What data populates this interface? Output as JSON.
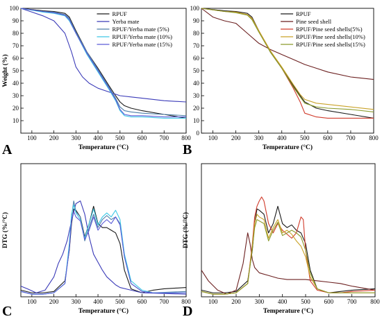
{
  "colors": {
    "RPUF": "#1a1a1a",
    "Yerba mate": "#3a3ab8",
    "RPUF/Yerba mate (5%)": "#4d7ea8",
    "RPUF/Yerba mate (10%)": "#3ec8e6",
    "RPUF/Yerba mate (15%)": "#5a5ad6",
    "Pine seed shell": "#6b1f1f",
    "RPUF/Pine seed shells(5%)": "#d03a2a",
    "RPUF/Pine seed shells(10%)": "#c9a227",
    "RPUF/Pine seed shells(15%)": "#8a9a2a"
  },
  "chart_data": [
    {
      "panel": "A",
      "type": "line",
      "xlabel": "Temperature (°C)",
      "ylabel": "Weight (%)",
      "xlim": [
        50,
        800
      ],
      "ylim": [
        0,
        100
      ],
      "xticks": [
        100,
        200,
        300,
        400,
        500,
        600,
        700,
        800
      ],
      "yticks": [
        10,
        20,
        30,
        40,
        50,
        60,
        70,
        80,
        90,
        100
      ],
      "legend_position": "top-right",
      "series": [
        {
          "name": "RPUF",
          "x": [
            50,
            150,
            200,
            250,
            270,
            300,
            350,
            400,
            450,
            480,
            500,
            520,
            550,
            600,
            700,
            800
          ],
          "y": [
            100,
            98,
            97.5,
            96,
            93,
            82,
            65,
            52,
            38,
            30,
            25,
            22,
            20,
            18,
            15,
            12
          ]
        },
        {
          "name": "Yerba mate",
          "x": [
            50,
            100,
            150,
            200,
            250,
            280,
            300,
            330,
            360,
            400,
            450,
            500,
            550,
            600,
            700,
            800
          ],
          "y": [
            100,
            97,
            94,
            90,
            80,
            65,
            53,
            45,
            40,
            36,
            33,
            30,
            29,
            28,
            26,
            25
          ]
        },
        {
          "name": "RPUF/Yerba mate (5%)",
          "x": [
            50,
            150,
            200,
            250,
            270,
            300,
            350,
            400,
            450,
            480,
            500,
            520,
            550,
            600,
            700,
            800
          ],
          "y": [
            100,
            97.5,
            97,
            95,
            92,
            81,
            65,
            51,
            37,
            28,
            21,
            18,
            17,
            16,
            15,
            14
          ]
        },
        {
          "name": "RPUF/Yerba mate (10%)",
          "x": [
            50,
            150,
            200,
            250,
            270,
            300,
            350,
            400,
            450,
            480,
            500,
            520,
            550,
            600,
            700,
            800
          ],
          "y": [
            100,
            97,
            96,
            94,
            90,
            80,
            63,
            49,
            35,
            26,
            18,
            14,
            13,
            13,
            12,
            12
          ]
        },
        {
          "name": "RPUF/Yerba mate (15%)",
          "x": [
            50,
            150,
            200,
            250,
            270,
            300,
            350,
            400,
            450,
            480,
            500,
            520,
            550,
            600,
            700,
            800
          ],
          "y": [
            100,
            97.5,
            96.5,
            94.5,
            91,
            80,
            64,
            50,
            36,
            27,
            19,
            15,
            14,
            14,
            13,
            13
          ]
        }
      ]
    },
    {
      "panel": "B",
      "type": "line",
      "xlabel": "Temperature (°C)",
      "ylabel": "",
      "xlim": [
        50,
        800
      ],
      "ylim": [
        0,
        100
      ],
      "xticks": [
        100,
        200,
        300,
        400,
        500,
        600,
        700,
        800
      ],
      "yticks": [
        0,
        10,
        20,
        30,
        40,
        50,
        60,
        70,
        80,
        90,
        100
      ],
      "legend_position": "top-right",
      "series": [
        {
          "name": "RPUF",
          "x": [
            50,
            150,
            200,
            250,
            270,
            300,
            350,
            400,
            450,
            480,
            500,
            550,
            600,
            700,
            800
          ],
          "y": [
            100,
            98,
            97.5,
            96,
            93,
            82,
            65,
            52,
            38,
            30,
            25,
            20,
            18,
            15,
            12
          ]
        },
        {
          "name": "Pine seed shell",
          "x": [
            50,
            100,
            150,
            200,
            250,
            300,
            350,
            400,
            450,
            500,
            550,
            600,
            700,
            800
          ],
          "y": [
            100,
            93,
            90,
            88,
            80,
            72,
            67,
            63,
            59,
            55,
            52,
            49,
            45,
            43
          ]
        },
        {
          "name": "RPUF/Pine seed shells(5%)",
          "x": [
            50,
            150,
            200,
            250,
            270,
            300,
            350,
            400,
            450,
            480,
            500,
            550,
            600,
            700,
            800
          ],
          "y": [
            100,
            97.5,
            97,
            95,
            92,
            82,
            66,
            52,
            36,
            25,
            16,
            13,
            12,
            12,
            12
          ]
        },
        {
          "name": "RPUF/Pine seed shells(10%)",
          "x": [
            50,
            150,
            200,
            250,
            270,
            300,
            350,
            400,
            450,
            480,
            500,
            550,
            600,
            700,
            800
          ],
          "y": [
            100,
            97.5,
            97,
            95,
            92,
            82,
            66,
            53,
            39,
            31,
            27,
            24,
            23,
            21,
            19
          ]
        },
        {
          "name": "RPUF/Pine seed shells(15%)",
          "x": [
            50,
            150,
            200,
            250,
            270,
            300,
            350,
            400,
            450,
            480,
            500,
            550,
            600,
            700,
            800
          ],
          "y": [
            100,
            97.5,
            96.5,
            94.5,
            91,
            81,
            65,
            52,
            37,
            29,
            24,
            21,
            20,
            19,
            17
          ]
        }
      ]
    },
    {
      "panel": "C",
      "type": "line",
      "xlabel": "Temperature (°C)",
      "ylabel": "DTG (%/°C)",
      "xlim": [
        50,
        800
      ],
      "ylim": [
        0,
        1
      ],
      "xticks": [
        100,
        200,
        300,
        400,
        500,
        600,
        700,
        800
      ],
      "yticks": [],
      "series": [
        {
          "name": "RPUF",
          "x": [
            50,
            100,
            150,
            200,
            250,
            270,
            280,
            290,
            300,
            320,
            340,
            360,
            380,
            400,
            420,
            440,
            460,
            480,
            500,
            520,
            550,
            600,
            650,
            700,
            800
          ],
          "y": [
            0.05,
            0.03,
            0.03,
            0.04,
            0.12,
            0.35,
            0.55,
            0.66,
            0.65,
            0.6,
            0.45,
            0.55,
            0.68,
            0.55,
            0.52,
            0.52,
            0.5,
            0.48,
            0.4,
            0.2,
            0.06,
            0.03,
            0.05,
            0.06,
            0.07
          ]
        },
        {
          "name": "Yerba mate",
          "x": [
            50,
            80,
            120,
            160,
            200,
            220,
            240,
            260,
            280,
            300,
            320,
            340,
            360,
            380,
            400,
            420,
            440,
            460,
            480,
            500,
            550,
            600,
            800
          ],
          "y": [
            0.08,
            0.06,
            0.03,
            0.05,
            0.15,
            0.25,
            0.32,
            0.42,
            0.57,
            0.7,
            0.72,
            0.62,
            0.45,
            0.32,
            0.26,
            0.2,
            0.15,
            0.12,
            0.09,
            0.07,
            0.05,
            0.03,
            0.02
          ]
        },
        {
          "name": "RPUF/Yerba mate (5%)",
          "x": [
            50,
            100,
            150,
            200,
            250,
            270,
            280,
            290,
            300,
            320,
            340,
            360,
            380,
            400,
            420,
            440,
            460,
            480,
            500,
            520,
            550,
            600,
            650,
            800
          ],
          "y": [
            0.04,
            0.02,
            0.02,
            0.03,
            0.1,
            0.38,
            0.6,
            0.72,
            0.64,
            0.6,
            0.42,
            0.52,
            0.62,
            0.52,
            0.58,
            0.61,
            0.58,
            0.6,
            0.55,
            0.3,
            0.1,
            0.04,
            0.03,
            0.04
          ]
        },
        {
          "name": "RPUF/Yerba mate (10%)",
          "x": [
            50,
            100,
            150,
            200,
            250,
            270,
            280,
            290,
            300,
            320,
            340,
            360,
            380,
            400,
            420,
            440,
            460,
            480,
            500,
            520,
            550,
            600,
            650,
            800
          ],
          "y": [
            0.04,
            0.02,
            0.02,
            0.03,
            0.1,
            0.4,
            0.62,
            0.69,
            0.63,
            0.58,
            0.44,
            0.55,
            0.66,
            0.54,
            0.6,
            0.63,
            0.6,
            0.65,
            0.58,
            0.32,
            0.12,
            0.05,
            0.03,
            0.03
          ]
        },
        {
          "name": "RPUF/Yerba mate (15%)",
          "x": [
            50,
            100,
            150,
            200,
            250,
            270,
            280,
            290,
            300,
            320,
            340,
            360,
            380,
            400,
            420,
            440,
            460,
            480,
            500,
            520,
            550,
            600,
            650,
            800
          ],
          "y": [
            0.04,
            0.02,
            0.02,
            0.03,
            0.1,
            0.36,
            0.58,
            0.64,
            0.6,
            0.57,
            0.43,
            0.5,
            0.6,
            0.5,
            0.55,
            0.58,
            0.55,
            0.6,
            0.54,
            0.3,
            0.1,
            0.04,
            0.03,
            0.03
          ]
        }
      ]
    },
    {
      "panel": "D",
      "type": "line",
      "xlabel": "Temperature (°C)",
      "ylabel": "DTG (%/°C)",
      "xlim": [
        50,
        800
      ],
      "ylim": [
        0,
        1
      ],
      "xticks": [
        100,
        200,
        300,
        400,
        500,
        600,
        700,
        800
      ],
      "yticks": [],
      "series": [
        {
          "name": "RPUF",
          "x": [
            50,
            100,
            150,
            200,
            250,
            270,
            280,
            290,
            300,
            320,
            340,
            360,
            380,
            400,
            420,
            440,
            460,
            480,
            500,
            520,
            550,
            600,
            650,
            700,
            800
          ],
          "y": [
            0.05,
            0.03,
            0.03,
            0.04,
            0.12,
            0.35,
            0.55,
            0.66,
            0.65,
            0.62,
            0.48,
            0.55,
            0.68,
            0.55,
            0.52,
            0.54,
            0.5,
            0.48,
            0.4,
            0.2,
            0.06,
            0.03,
            0.04,
            0.05,
            0.06
          ]
        },
        {
          "name": "Pine seed shell",
          "x": [
            50,
            80,
            120,
            160,
            200,
            230,
            250,
            260,
            270,
            280,
            300,
            340,
            380,
            420,
            460,
            500,
            550,
            600,
            650,
            700,
            800
          ],
          "y": [
            0.2,
            0.12,
            0.05,
            0.02,
            0.05,
            0.25,
            0.48,
            0.4,
            0.28,
            0.22,
            0.18,
            0.16,
            0.14,
            0.13,
            0.13,
            0.13,
            0.12,
            0.11,
            0.1,
            0.08,
            0.05
          ]
        },
        {
          "name": "RPUF/Pine seed shells(5%)",
          "x": [
            50,
            100,
            150,
            200,
            250,
            270,
            280,
            290,
            300,
            310,
            320,
            340,
            360,
            380,
            400,
            420,
            440,
            460,
            480,
            490,
            500,
            520,
            550,
            600,
            650,
            700,
            800
          ],
          "y": [
            0.04,
            0.02,
            0.02,
            0.03,
            0.1,
            0.4,
            0.6,
            0.68,
            0.72,
            0.75,
            0.72,
            0.55,
            0.48,
            0.55,
            0.5,
            0.47,
            0.44,
            0.48,
            0.6,
            0.58,
            0.35,
            0.12,
            0.05,
            0.03,
            0.03,
            0.04,
            0.05
          ]
        },
        {
          "name": "RPUF/Pine seed shells(10%)",
          "x": [
            50,
            100,
            150,
            200,
            250,
            270,
            280,
            290,
            300,
            320,
            340,
            360,
            380,
            400,
            420,
            440,
            460,
            480,
            500,
            520,
            550,
            600,
            650,
            800
          ],
          "y": [
            0.04,
            0.02,
            0.02,
            0.03,
            0.1,
            0.38,
            0.55,
            0.62,
            0.6,
            0.58,
            0.44,
            0.52,
            0.58,
            0.48,
            0.5,
            0.47,
            0.42,
            0.38,
            0.3,
            0.15,
            0.06,
            0.03,
            0.03,
            0.03
          ]
        },
        {
          "name": "RPUF/Pine seed shells(15%)",
          "x": [
            50,
            100,
            150,
            200,
            250,
            270,
            280,
            290,
            300,
            320,
            340,
            360,
            380,
            400,
            420,
            440,
            460,
            480,
            500,
            520,
            550,
            600,
            650,
            800
          ],
          "y": [
            0.04,
            0.02,
            0.02,
            0.03,
            0.1,
            0.36,
            0.52,
            0.58,
            0.57,
            0.55,
            0.42,
            0.5,
            0.56,
            0.46,
            0.48,
            0.5,
            0.48,
            0.45,
            0.35,
            0.18,
            0.06,
            0.03,
            0.03,
            0.03
          ]
        }
      ]
    }
  ]
}
